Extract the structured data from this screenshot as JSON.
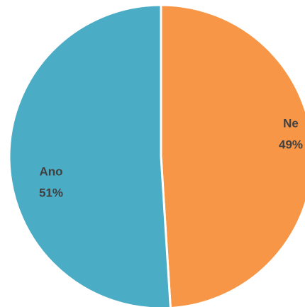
{
  "chart_data": {
    "type": "pie",
    "categories": [
      "Ne",
      "Ano"
    ],
    "values": [
      49,
      51
    ],
    "value_labels": [
      "49%",
      "51%"
    ],
    "colors": [
      "#f79646",
      "#4bacc6"
    ]
  }
}
